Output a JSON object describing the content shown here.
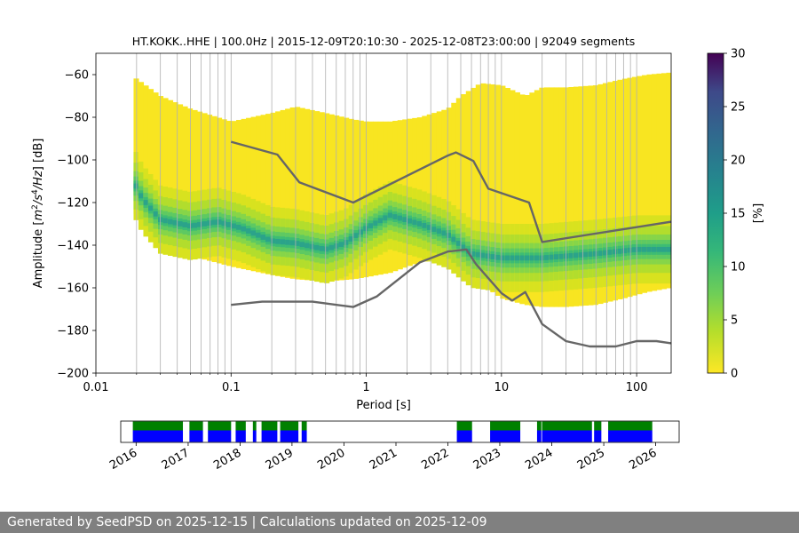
{
  "figure": {
    "title": "HT.KOKK..HHE | 100.0Hz | 2015-12-09T20:10:30 - 2025-12-08T23:00:00 | 92049 segments",
    "footer": "Generated by SeedPSD on 2025-12-15 | Calculations updated on 2025-12-09"
  },
  "chart_data": [
    {
      "type": "heatmap",
      "title": "HT.KOKK..HHE | 100.0Hz | 2015-12-09T20:10:30 - 2025-12-08T23:00:00 | 92049 segments",
      "xlabel": "Period [s]",
      "ylabel_parts": [
        "Amplitude [",
        "m",
        "2",
        "/",
        "s",
        "4",
        "/",
        "Hz",
        "] [dB]"
      ],
      "xscale": "log",
      "xlim": [
        0.01,
        180
      ],
      "ylim": [
        -200,
        -50
      ],
      "x_ticks": [
        {
          "value": 0.01,
          "label": "0.01"
        },
        {
          "value": 0.1,
          "label": "0.1"
        },
        {
          "value": 1,
          "label": "1"
        },
        {
          "value": 10,
          "label": "10"
        },
        {
          "value": 100,
          "label": "100"
        }
      ],
      "y_ticks": [
        {
          "value": -60,
          "label": "−60"
        },
        {
          "value": -80,
          "label": "−80"
        },
        {
          "value": -100,
          "label": "−100"
        },
        {
          "value": -120,
          "label": "−120"
        },
        {
          "value": -140,
          "label": "−140"
        },
        {
          "value": -160,
          "label": "−160"
        },
        {
          "value": -180,
          "label": "−180"
        },
        {
          "value": -200,
          "label": "−200"
        }
      ],
      "grid": "x-major-minor",
      "colormap": "viridis",
      "colorbar": {
        "label": "[%]",
        "range": [
          0,
          30
        ],
        "ticks": [
          {
            "value": 0,
            "label": "0"
          },
          {
            "value": 5,
            "label": "5"
          },
          {
            "value": 10,
            "label": "10"
          },
          {
            "value": 15,
            "label": "15"
          },
          {
            "value": 20,
            "label": "20"
          },
          {
            "value": 25,
            "label": "25"
          },
          {
            "value": 30,
            "label": "30"
          }
        ]
      },
      "density_envelope": {
        "period": [
          0.019,
          0.03,
          0.05,
          0.1,
          0.2,
          0.3,
          0.5,
          0.8,
          1.0,
          1.5,
          2.5,
          4.0,
          5.0,
          7.0,
          10.0,
          15.0,
          20.0,
          30.0,
          50.0,
          80.0,
          120.0,
          180.0
        ],
        "upper_db": [
          -61,
          -70,
          -76,
          -82,
          -78,
          -75,
          -78,
          -81,
          -82,
          -82,
          -80,
          -76,
          -70,
          -64,
          -65,
          -70,
          -66,
          -66,
          -65,
          -62,
          -60,
          -59
        ],
        "lower_db": [
          -124,
          -138,
          -145,
          -150,
          -154,
          -156,
          -157,
          -156,
          -155,
          -153,
          -148,
          -146,
          -148,
          -158,
          -165,
          -168,
          -169,
          -169,
          -168,
          -165,
          -162,
          -160
        ]
      },
      "density_mode": {
        "period": [
          0.019,
          0.022,
          0.03,
          0.05,
          0.08,
          0.12,
          0.2,
          0.3,
          0.5,
          0.7,
          1.0,
          1.5,
          2.5,
          4.0,
          6.0,
          10.0,
          20.0,
          50.0,
          100.0,
          180.0
        ],
        "amplitude_db": [
          -110,
          -118,
          -128,
          -131,
          -129,
          -132,
          -138,
          -139,
          -142,
          -139,
          -132,
          -126,
          -130,
          -135,
          -144,
          -146,
          -146,
          -144,
          -142,
          -142
        ]
      },
      "series": [
        {
          "period": [
            0.1,
            0.22,
            0.32,
            0.8,
            4.0,
            4.6,
            6.2,
            8.0,
            16.0,
            20.0,
            180.0
          ],
          "amplitude_db": [
            -91.5,
            -97.5,
            -110.5,
            -120,
            -98,
            -96.5,
            -100.5,
            -113.5,
            -120,
            -138.5,
            -129
          ],
          "color": "#666666"
        },
        {
          "period": [
            0.1,
            0.17,
            0.4,
            0.8,
            1.2,
            2.5,
            4.0,
            5.5,
            6.5,
            10.0,
            12.0,
            15.0,
            20.0,
            30.0,
            45.0,
            70.0,
            100.0,
            140.0,
            180.0
          ],
          "amplitude_db": [
            -168,
            -166.5,
            -166.5,
            -169,
            -164,
            -148,
            -143,
            -142,
            -149,
            -162.5,
            -166,
            -162,
            -177,
            -185,
            -187.5,
            -187.5,
            -185,
            -185,
            -186
          ],
          "color": "#666666"
        }
      ]
    },
    {
      "type": "timeline",
      "x_ticks": [
        "2016",
        "2017",
        "2018",
        "2019",
        "2020",
        "2021",
        "2022",
        "2023",
        "2024",
        "2025",
        "2026"
      ],
      "xlim": [
        "2015-09-15",
        "2026-06-15"
      ],
      "colors": {
        "upper": "#008000",
        "lower": "#0000ff"
      },
      "coverage_periods": [
        [
          "2015-12-09",
          "2016-11-25"
        ],
        [
          "2017-01-10",
          "2017-04-15"
        ],
        [
          "2017-05-20",
          "2017-10-30"
        ],
        [
          "2017-12-01",
          "2018-02-10"
        ],
        [
          "2018-04-01",
          "2018-04-25"
        ],
        [
          "2018-06-01",
          "2018-09-20"
        ],
        [
          "2018-10-10",
          "2019-02-15"
        ],
        [
          "2019-03-10",
          "2019-04-15"
        ],
        [
          "2022-03-05",
          "2022-06-20"
        ],
        [
          "2022-10-25",
          "2023-05-25"
        ],
        [
          "2023-09-20",
          "2023-10-20"
        ],
        [
          "2023-10-25",
          "2024-10-10"
        ],
        [
          "2024-10-25",
          "2024-12-15"
        ],
        [
          "2025-02-01",
          "2025-12-08"
        ]
      ]
    }
  ]
}
